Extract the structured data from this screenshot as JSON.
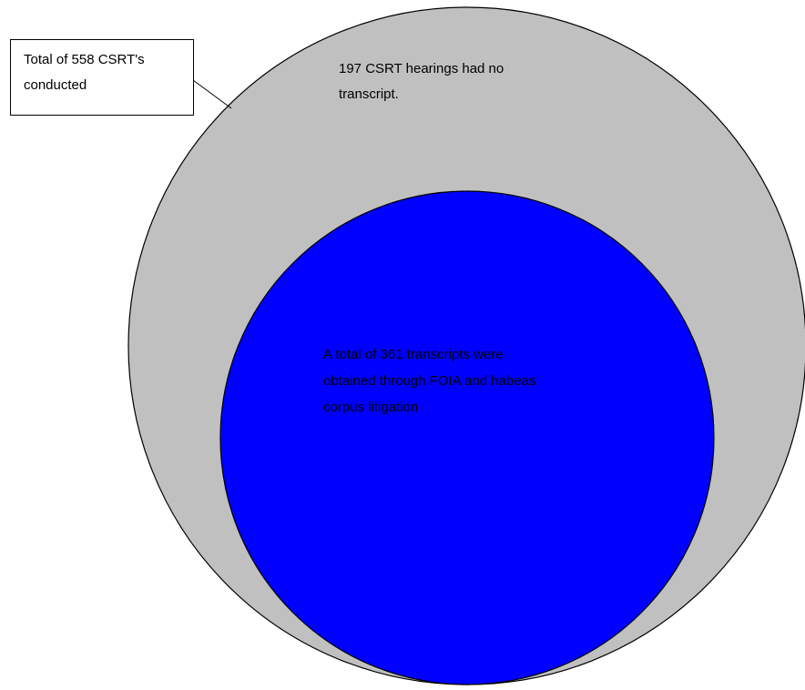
{
  "diagram": {
    "callout_label": {
      "lines": [
        "Total of 558 CSRT's",
        "conducted"
      ]
    },
    "outer_label": {
      "lines": [
        "197 CSRT hearings had no",
        "transcript."
      ]
    },
    "inner_label": {
      "lines": [
        "A total of 361 transcripts were",
        "obtained through FOIA and habeas",
        "corpus litigation"
      ]
    },
    "colors": {
      "outer_fill": "#c0c0c0",
      "inner_fill": "#0000ff",
      "outline": "#000000",
      "callout_bg": "#ffffff",
      "text": "#000000"
    }
  }
}
